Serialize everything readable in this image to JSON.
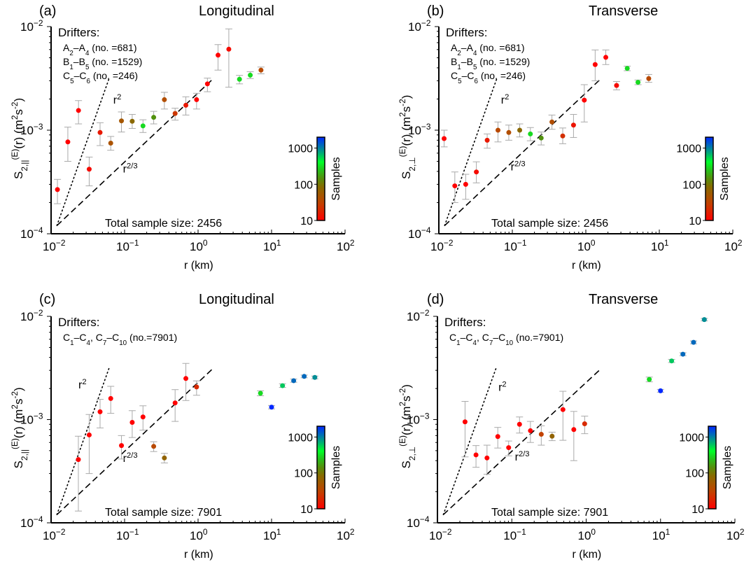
{
  "chart_data": [
    {
      "type": "scatter",
      "panel_label": "(a)",
      "title": "Longitudinal",
      "xlabel": "r (km)",
      "ylabel": {
        "base": "S",
        "sub": "2,||",
        "sup": "(E)",
        "rest": "(r) (m",
        "unit_sup1": "2",
        "unit_mid": "s",
        "unit_sup2": "-2",
        "close": ")"
      },
      "xscale": "log",
      "yscale": "log",
      "xlim": [
        0.01,
        100
      ],
      "ylim": [
        0.0001,
        0.01
      ],
      "xticks": [
        {
          "base": "10",
          "exp": "−2"
        },
        {
          "base": "10",
          "exp": "−1"
        },
        {
          "base": "10",
          "exp": "0"
        },
        {
          "base": "10",
          "exp": "1"
        },
        {
          "base": "10",
          "exp": "2"
        }
      ],
      "yticks": [
        {
          "base": "10",
          "exp": "−4"
        },
        {
          "base": "10",
          "exp": "−3"
        },
        {
          "base": "10",
          "exp": "−2"
        }
      ],
      "legend_title": "Drifters:",
      "legend_lines": [
        {
          "a": "A",
          "as": "2",
          "b": "A",
          "bs": "4",
          "txt": " (no. =681)"
        },
        {
          "a": "B",
          "as": "1",
          "b": "B",
          "bs": "5",
          "txt": " (no. =1529)"
        },
        {
          "a": "C",
          "as": "5",
          "b": "C",
          "bs": "6",
          "txt": " (no. =246)"
        }
      ],
      "total_label": "Total sample size: 2456",
      "ref_r2_label": "r",
      "ref_r2_exp": "2",
      "ref_r23_label": "r",
      "ref_r23_exp": "2/3",
      "colorbar": {
        "label": "Samples",
        "ticks": [
          "10",
          "100",
          "1000"
        ],
        "range": [
          10,
          2000
        ]
      },
      "points": [
        {
          "r": 0.0122,
          "s": 0.000267,
          "lo": 0.000195,
          "hi": 0.000335,
          "n": 10
        },
        {
          "r": 0.0169,
          "s": 0.00077,
          "lo": 0.0005,
          "hi": 0.00107,
          "n": 10
        },
        {
          "r": 0.0236,
          "s": 0.00155,
          "lo": 0.00115,
          "hi": 0.00193,
          "n": 10
        },
        {
          "r": 0.033,
          "s": 0.00042,
          "lo": 0.00029,
          "hi": 0.00055,
          "n": 12
        },
        {
          "r": 0.0464,
          "s": 0.00095,
          "lo": 0.00071,
          "hi": 0.00118,
          "n": 15
        },
        {
          "r": 0.0648,
          "s": 0.00075,
          "lo": 0.00064,
          "hi": 0.00087,
          "n": 45
        },
        {
          "r": 0.0907,
          "s": 0.00123,
          "lo": 0.00096,
          "hi": 0.0015,
          "n": 50
        },
        {
          "r": 0.127,
          "s": 0.00122,
          "lo": 0.00104,
          "hi": 0.00142,
          "n": 80
        },
        {
          "r": 0.178,
          "s": 0.0011,
          "lo": 0.00095,
          "hi": 0.00126,
          "n": 300
        },
        {
          "r": 0.249,
          "s": 0.00133,
          "lo": 0.00115,
          "hi": 0.00152,
          "n": 150
        },
        {
          "r": 0.348,
          "s": 0.00197,
          "lo": 0.0016,
          "hi": 0.00232,
          "n": 40
        },
        {
          "r": 0.487,
          "s": 0.00145,
          "lo": 0.00125,
          "hi": 0.00163,
          "n": 25
        },
        {
          "r": 0.682,
          "s": 0.00174,
          "lo": 0.0014,
          "hi": 0.0021,
          "n": 15
        },
        {
          "r": 0.954,
          "s": 0.00197,
          "lo": 0.0016,
          "hi": 0.00227,
          "n": 10
        },
        {
          "r": 1.34,
          "s": 0.0028,
          "lo": 0.00235,
          "hi": 0.00318,
          "n": 10
        },
        {
          "r": 1.87,
          "s": 0.0053,
          "lo": 0.0038,
          "hi": 0.0067,
          "n": 10
        },
        {
          "r": 2.62,
          "s": 0.00605,
          "lo": 0.0026,
          "hi": 0.0095,
          "n": 12
        },
        {
          "r": 3.66,
          "s": 0.0031,
          "lo": 0.0028,
          "hi": 0.00338,
          "n": 300
        },
        {
          "r": 5.13,
          "s": 0.0034,
          "lo": 0.00315,
          "hi": 0.00367,
          "n": 300
        },
        {
          "r": 7.18,
          "s": 0.0038,
          "lo": 0.0035,
          "hi": 0.00407,
          "n": 35
        }
      ]
    },
    {
      "type": "scatter",
      "panel_label": "(b)",
      "title": "Transverse",
      "xlabel": "r (km)",
      "ylabel": {
        "base": "S",
        "sub": "2,⊥",
        "sup": "(E)",
        "rest": "(r) (m",
        "unit_sup1": "2",
        "unit_mid": "s",
        "unit_sup2": "-2",
        "close": ")"
      },
      "xscale": "log",
      "yscale": "log",
      "xlim": [
        0.01,
        100
      ],
      "ylim": [
        0.0001,
        0.01
      ],
      "xticks": [
        {
          "base": "10",
          "exp": "−2"
        },
        {
          "base": "10",
          "exp": "−1"
        },
        {
          "base": "10",
          "exp": "0"
        },
        {
          "base": "10",
          "exp": "1"
        },
        {
          "base": "10",
          "exp": "2"
        }
      ],
      "yticks": [
        {
          "base": "10",
          "exp": "−4"
        },
        {
          "base": "10",
          "exp": "−3"
        },
        {
          "base": "10",
          "exp": "−2"
        }
      ],
      "legend_title": "Drifters:",
      "legend_lines": [
        {
          "a": "A",
          "as": "2",
          "b": "A",
          "bs": "4",
          "txt": " (no. =681)"
        },
        {
          "a": "B",
          "as": "1",
          "b": "B",
          "bs": "5",
          "txt": " (no. =1529)"
        },
        {
          "a": "C",
          "as": "5",
          "b": "C",
          "bs": "6",
          "txt": " (no. =246)"
        }
      ],
      "total_label": "Total sample size: 2456",
      "ref_r2_label": "r",
      "ref_r2_exp": "2",
      "ref_r23_label": "r",
      "ref_r23_exp": "2/3",
      "colorbar": {
        "label": "Samples",
        "ticks": [
          "10",
          "100",
          "1000"
        ],
        "range": [
          10,
          2000
        ]
      },
      "points": [
        {
          "r": 0.0118,
          "s": 0.00083,
          "lo": 0.00069,
          "hi": 0.001,
          "n": 10
        },
        {
          "r": 0.0165,
          "s": 0.00029,
          "lo": 0.0002,
          "hi": 0.000395,
          "n": 10
        },
        {
          "r": 0.0232,
          "s": 0.0003,
          "lo": 0.000215,
          "hi": 0.000375,
          "n": 10
        },
        {
          "r": 0.0324,
          "s": 0.000395,
          "lo": 0.00031,
          "hi": 0.000495,
          "n": 12
        },
        {
          "r": 0.0455,
          "s": 0.0008,
          "lo": 0.00067,
          "hi": 0.00092,
          "n": 15
        },
        {
          "r": 0.0638,
          "s": 0.001,
          "lo": 0.00077,
          "hi": 0.0012,
          "n": 35
        },
        {
          "r": 0.0895,
          "s": 0.00095,
          "lo": 0.0008,
          "hi": 0.00112,
          "n": 40
        },
        {
          "r": 0.126,
          "s": 0.001,
          "lo": 0.00086,
          "hi": 0.00115,
          "n": 80
        },
        {
          "r": 0.176,
          "s": 0.00092,
          "lo": 0.00079,
          "hi": 0.00106,
          "n": 300
        },
        {
          "r": 0.247,
          "s": 0.00084,
          "lo": 0.00072,
          "hi": 0.00096,
          "n": 150
        },
        {
          "r": 0.346,
          "s": 0.0012,
          "lo": 0.00102,
          "hi": 0.0014,
          "n": 40
        },
        {
          "r": 0.485,
          "s": 0.00088,
          "lo": 0.00074,
          "hi": 0.00105,
          "n": 22
        },
        {
          "r": 0.68,
          "s": 0.00112,
          "lo": 0.00085,
          "hi": 0.00142,
          "n": 14
        },
        {
          "r": 0.953,
          "s": 0.00195,
          "lo": 0.0012,
          "hi": 0.00275,
          "n": 10
        },
        {
          "r": 1.34,
          "s": 0.0043,
          "lo": 0.003,
          "hi": 0.00595,
          "n": 10
        },
        {
          "r": 1.87,
          "s": 0.00505,
          "lo": 0.0043,
          "hi": 0.00595,
          "n": 10
        },
        {
          "r": 2.62,
          "s": 0.0027,
          "lo": 0.00245,
          "hi": 0.00295,
          "n": 12
        },
        {
          "r": 3.66,
          "s": 0.00395,
          "lo": 0.00375,
          "hi": 0.00415,
          "n": 300
        },
        {
          "r": 5.13,
          "s": 0.0029,
          "lo": 0.00275,
          "hi": 0.00305,
          "n": 300
        },
        {
          "r": 7.18,
          "s": 0.00315,
          "lo": 0.0029,
          "hi": 0.00345,
          "n": 35
        }
      ]
    },
    {
      "type": "scatter",
      "panel_label": "(c)",
      "title": "Longitudinal",
      "xlabel": "r (km)",
      "ylabel": {
        "base": "S",
        "sub": "2,||",
        "sup": "(E)",
        "rest": "(r) (m",
        "unit_sup1": "2",
        "unit_mid": "s",
        "unit_sup2": "-2",
        "close": ")"
      },
      "xscale": "log",
      "yscale": "log",
      "xlim": [
        0.01,
        100
      ],
      "ylim": [
        0.0001,
        0.01
      ],
      "xticks": [
        {
          "base": "10",
          "exp": "−2"
        },
        {
          "base": "10",
          "exp": "−1"
        },
        {
          "base": "10",
          "exp": "0"
        },
        {
          "base": "10",
          "exp": "1"
        },
        {
          "base": "10",
          "exp": "2"
        }
      ],
      "yticks": [
        {
          "base": "10",
          "exp": "−4"
        },
        {
          "base": "10",
          "exp": "−3"
        },
        {
          "base": "10",
          "exp": "−2"
        }
      ],
      "legend_title": "Drifters:",
      "legend_lines": [
        {
          "a": "C",
          "as": "1",
          "b": "C",
          "bs": "4",
          "mid": ", ",
          "c": "C",
          "cs": "7",
          "d": "C",
          "ds": "10",
          "txt": " (no.=7901)"
        }
      ],
      "total_label": "Total sample size: 7901",
      "ref_r2_label": "r",
      "ref_r2_exp": "2",
      "ref_r23_label": "r",
      "ref_r23_exp": "2/3",
      "colorbar": {
        "label": "Samples",
        "ticks": [
          "10",
          "100",
          "1000"
        ],
        "range": [
          10,
          2000
        ]
      },
      "points": [
        {
          "r": 0.0235,
          "s": 0.00041,
          "lo": 0.00013,
          "hi": 0.00069,
          "n": 10
        },
        {
          "r": 0.033,
          "s": 0.00071,
          "lo": 0.0003,
          "hi": 0.00112,
          "n": 10
        },
        {
          "r": 0.0464,
          "s": 0.00119,
          "lo": 0.00083,
          "hi": 0.00157,
          "n": 10
        },
        {
          "r": 0.0648,
          "s": 0.0016,
          "lo": 0.00115,
          "hi": 0.0021,
          "n": 10
        },
        {
          "r": 0.0907,
          "s": 0.00056,
          "lo": 0.000415,
          "hi": 0.0007,
          "n": 10
        },
        {
          "r": 0.127,
          "s": 0.00094,
          "lo": 0.00067,
          "hi": 0.00122,
          "n": 10
        },
        {
          "r": 0.178,
          "s": 0.00106,
          "lo": 0.00079,
          "hi": 0.00136,
          "n": 10
        },
        {
          "r": 0.249,
          "s": 0.00055,
          "lo": 0.00049,
          "hi": 0.00061,
          "n": 35
        },
        {
          "r": 0.348,
          "s": 0.000425,
          "lo": 0.00038,
          "hi": 0.00047,
          "n": 70
        },
        {
          "r": 0.487,
          "s": 0.00145,
          "lo": 0.00096,
          "hi": 0.00195,
          "n": 10
        },
        {
          "r": 0.682,
          "s": 0.0025,
          "lo": 0.00153,
          "hi": 0.0035,
          "n": 10
        },
        {
          "r": 0.954,
          "s": 0.00207,
          "lo": 0.00172,
          "hi": 0.00237,
          "n": 20
        },
        {
          "r": 7.06,
          "s": 0.0018,
          "lo": 0.0017,
          "hi": 0.0019,
          "n": 300
        },
        {
          "r": 10.0,
          "s": 0.00132,
          "lo": 0.00127,
          "hi": 0.00137,
          "n": 2000
        },
        {
          "r": 14.1,
          "s": 0.00213,
          "lo": 0.00205,
          "hi": 0.00222,
          "n": 600
        },
        {
          "r": 20.0,
          "s": 0.00238,
          "lo": 0.0023,
          "hi": 0.00247,
          "n": 1200
        },
        {
          "r": 27.8,
          "s": 0.00262,
          "lo": 0.00254,
          "hi": 0.0027,
          "n": 1200
        },
        {
          "r": 38.8,
          "s": 0.00256,
          "lo": 0.00248,
          "hi": 0.00264,
          "n": 900
        }
      ]
    },
    {
      "type": "scatter",
      "panel_label": "(d)",
      "title": "Transverse",
      "xlabel": "r (km)",
      "ylabel": {
        "base": "S",
        "sub": "2,⊥",
        "sup": "(E)",
        "rest": "(r) (m",
        "unit_sup1": "2",
        "unit_mid": "s",
        "unit_sup2": "-2",
        "close": ")"
      },
      "xscale": "log",
      "yscale": "log",
      "xlim": [
        0.01,
        100
      ],
      "ylim": [
        0.0001,
        0.01
      ],
      "xticks": [
        {
          "base": "10",
          "exp": "−2"
        },
        {
          "base": "10",
          "exp": "−1"
        },
        {
          "base": "10",
          "exp": "0"
        },
        {
          "base": "10",
          "exp": "1"
        },
        {
          "base": "10",
          "exp": "2"
        }
      ],
      "yticks": [
        {
          "base": "10",
          "exp": "−4"
        },
        {
          "base": "10",
          "exp": "−3"
        },
        {
          "base": "10",
          "exp": "−2"
        }
      ],
      "legend_title": "Drifters:",
      "legend_lines": [
        {
          "a": "C",
          "as": "1",
          "b": "C",
          "bs": "4",
          "mid": ", ",
          "c": "C",
          "cs": "7",
          "d": "C",
          "ds": "10",
          "txt": " (no.=7901)"
        }
      ],
      "total_label": "Total sample size: 7901",
      "ref_r2_label": "r",
      "ref_r2_exp": "2",
      "ref_r23_label": "r",
      "ref_r23_exp": "2/3",
      "colorbar": {
        "label": "Samples",
        "ticks": [
          "10",
          "100",
          "1000"
        ],
        "range": [
          10,
          2000
        ]
      },
      "points": [
        {
          "r": 0.0235,
          "s": 0.00095,
          "lo": 0.000435,
          "hi": 0.0015,
          "n": 10
        },
        {
          "r": 0.033,
          "s": 0.000455,
          "lo": 0.000345,
          "hi": 0.00056,
          "n": 10
        },
        {
          "r": 0.0464,
          "s": 0.000425,
          "lo": 0.000295,
          "hi": 0.000565,
          "n": 10
        },
        {
          "r": 0.0648,
          "s": 0.000685,
          "lo": 0.00053,
          "hi": 0.00084,
          "n": 10
        },
        {
          "r": 0.0907,
          "s": 0.000535,
          "lo": 0.000445,
          "hi": 0.00062,
          "n": 10
        },
        {
          "r": 0.127,
          "s": 0.0009,
          "lo": 0.00074,
          "hi": 0.00106,
          "n": 10
        },
        {
          "r": 0.178,
          "s": 0.00078,
          "lo": 0.0006,
          "hi": 0.00096,
          "n": 10
        },
        {
          "r": 0.249,
          "s": 0.00072,
          "lo": 0.000565,
          "hi": 0.00087,
          "n": 30
        },
        {
          "r": 0.348,
          "s": 0.00069,
          "lo": 0.000625,
          "hi": 0.000755,
          "n": 70
        },
        {
          "r": 0.487,
          "s": 0.00125,
          "lo": 0.00063,
          "hi": 0.00188,
          "n": 10
        },
        {
          "r": 0.682,
          "s": 0.0008,
          "lo": 0.0004,
          "hi": 0.0012,
          "n": 10
        },
        {
          "r": 0.954,
          "s": 0.00091,
          "lo": 0.00073,
          "hi": 0.00108,
          "n": 20
        },
        {
          "r": 7.06,
          "s": 0.00245,
          "lo": 0.00232,
          "hi": 0.00258,
          "n": 300
        },
        {
          "r": 10.0,
          "s": 0.0019,
          "lo": 0.00184,
          "hi": 0.00196,
          "n": 2000
        },
        {
          "r": 14.1,
          "s": 0.0037,
          "lo": 0.00357,
          "hi": 0.00383,
          "n": 600
        },
        {
          "r": 20.0,
          "s": 0.0043,
          "lo": 0.00416,
          "hi": 0.00444,
          "n": 1200
        },
        {
          "r": 27.8,
          "s": 0.0056,
          "lo": 0.00542,
          "hi": 0.00578,
          "n": 1200
        },
        {
          "r": 38.8,
          "s": 0.0093,
          "lo": 0.00905,
          "hi": 0.00955,
          "n": 900
        }
      ]
    }
  ]
}
